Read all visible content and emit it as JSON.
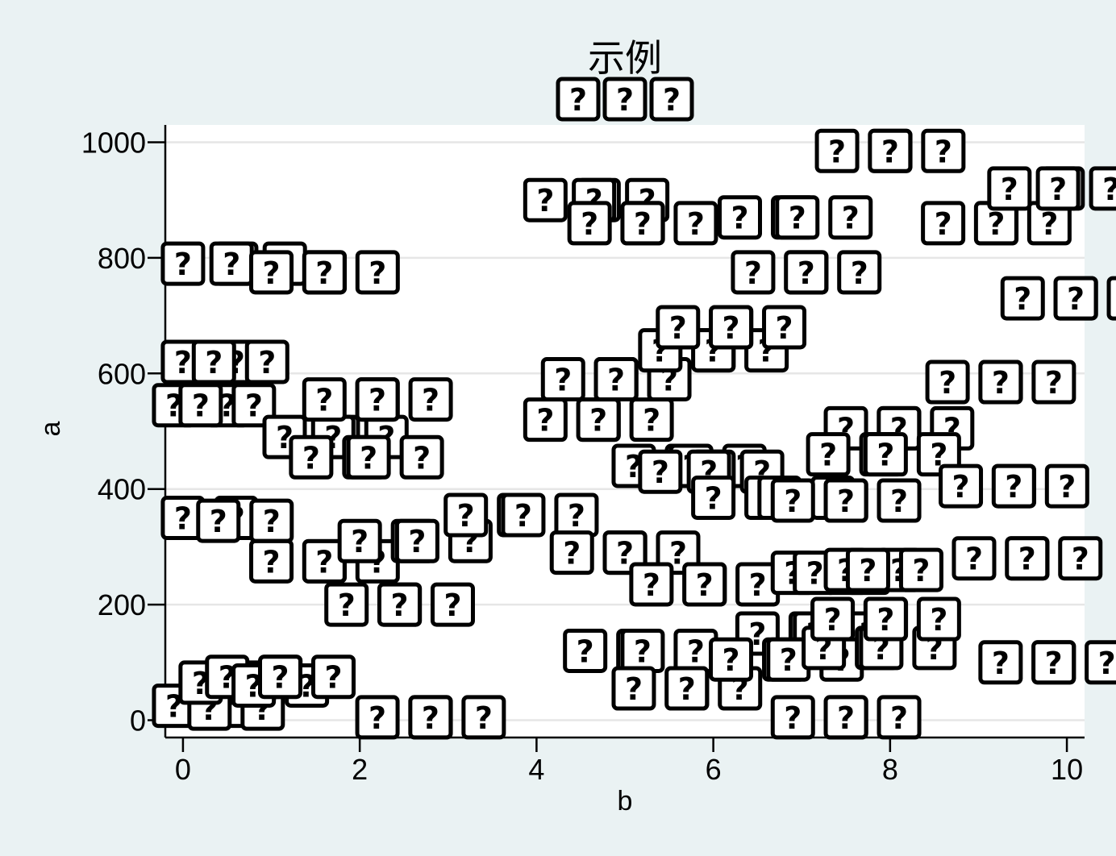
{
  "chart_data": {
    "type": "scatter",
    "title": "示例",
    "subtitle": "???",
    "xlabel": "b",
    "ylabel": "a",
    "xlim": [
      -0.2,
      10.2
    ],
    "ylim": [
      -30,
      1030
    ],
    "xticks": [
      0,
      2,
      4,
      6,
      8,
      10
    ],
    "yticks": [
      0,
      200,
      400,
      600,
      800,
      1000
    ],
    "grid": "horizontal",
    "marker": "?",
    "marker_labels": [
      "??"
    ],
    "series": [
      {
        "name": "",
        "points": [
          {
            "x": -0.1,
            "y": 25
          },
          {
            "x": 0.3,
            "y": 20
          },
          {
            "x": 0.2,
            "y": 65
          },
          {
            "x": 0.5,
            "y": 75
          },
          {
            "x": 0.8,
            "y": 60
          },
          {
            "x": 1.1,
            "y": 75
          },
          {
            "x": 0.0,
            "y": 350
          },
          {
            "x": 0.4,
            "y": 345
          },
          {
            "x": 1.0,
            "y": 275
          },
          {
            "x": 1.6,
            "y": 275
          },
          {
            "x": 1.85,
            "y": 200
          },
          {
            "x": 2.45,
            "y": 200
          },
          {
            "x": 2.0,
            "y": 310
          },
          {
            "x": 2.65,
            "y": 310
          },
          {
            "x": 2.2,
            "y": 5
          },
          {
            "x": 2.8,
            "y": 5
          },
          {
            "x": 3.2,
            "y": 355
          },
          {
            "x": 3.85,
            "y": 355
          },
          {
            "x": -0.1,
            "y": 545
          },
          {
            "x": 0.2,
            "y": 545
          },
          {
            "x": 0.0,
            "y": 620
          },
          {
            "x": 0.35,
            "y": 620
          },
          {
            "x": 0.0,
            "y": 790
          },
          {
            "x": 0.55,
            "y": 790
          },
          {
            "x": 1.0,
            "y": 775
          },
          {
            "x": 1.6,
            "y": 775
          },
          {
            "x": 1.15,
            "y": 490
          },
          {
            "x": 1.7,
            "y": 490
          },
          {
            "x": 1.45,
            "y": 455
          },
          {
            "x": 2.1,
            "y": 455
          },
          {
            "x": 1.6,
            "y": 555
          },
          {
            "x": 2.2,
            "y": 555
          },
          {
            "x": 4.1,
            "y": 900
          },
          {
            "x": 4.65,
            "y": 900
          },
          {
            "x": 4.6,
            "y": 860
          },
          {
            "x": 5.2,
            "y": 860
          },
          {
            "x": 4.3,
            "y": 590
          },
          {
            "x": 4.9,
            "y": 590
          },
          {
            "x": 4.1,
            "y": 520
          },
          {
            "x": 4.7,
            "y": 520
          },
          {
            "x": 4.4,
            "y": 290
          },
          {
            "x": 5.0,
            "y": 290
          },
          {
            "x": 5.3,
            "y": 235
          },
          {
            "x": 5.9,
            "y": 235
          },
          {
            "x": 4.55,
            "y": 120
          },
          {
            "x": 5.2,
            "y": 120
          },
          {
            "x": 5.1,
            "y": 55
          },
          {
            "x": 5.7,
            "y": 55
          },
          {
            "x": 5.1,
            "y": 440
          },
          {
            "x": 5.75,
            "y": 440
          },
          {
            "x": 5.4,
            "y": 430
          },
          {
            "x": 5.95,
            "y": 430
          },
          {
            "x": 5.4,
            "y": 640
          },
          {
            "x": 6.0,
            "y": 640
          },
          {
            "x": 5.6,
            "y": 680
          },
          {
            "x": 6.2,
            "y": 680
          },
          {
            "x": 6.0,
            "y": 385
          },
          {
            "x": 6.75,
            "y": 385
          },
          {
            "x": 6.9,
            "y": 380
          },
          {
            "x": 7.5,
            "y": 380
          },
          {
            "x": 6.3,
            "y": 870
          },
          {
            "x": 6.95,
            "y": 870
          },
          {
            "x": 6.45,
            "y": 775
          },
          {
            "x": 7.05,
            "y": 775
          },
          {
            "x": 6.5,
            "y": 150
          },
          {
            "x": 7.15,
            "y": 150
          },
          {
            "x": 6.2,
            "y": 105
          },
          {
            "x": 6.85,
            "y": 105
          },
          {
            "x": 7.25,
            "y": 125
          },
          {
            "x": 7.9,
            "y": 125
          },
          {
            "x": 7.35,
            "y": 175
          },
          {
            "x": 7.95,
            "y": 175
          },
          {
            "x": 6.9,
            "y": 255
          },
          {
            "x": 7.15,
            "y": 255
          },
          {
            "x": 7.5,
            "y": 260
          },
          {
            "x": 7.75,
            "y": 260
          },
          {
            "x": 6.9,
            "y": 5
          },
          {
            "x": 7.5,
            "y": 5
          },
          {
            "x": 7.5,
            "y": 505
          },
          {
            "x": 8.1,
            "y": 505
          },
          {
            "x": 7.3,
            "y": 460
          },
          {
            "x": 7.95,
            "y": 460
          },
          {
            "x": 7.4,
            "y": 985
          },
          {
            "x": 8.0,
            "y": 985
          },
          {
            "x": 8.65,
            "y": 585
          },
          {
            "x": 9.25,
            "y": 585
          },
          {
            "x": 8.8,
            "y": 405
          },
          {
            "x": 9.4,
            "y": 405
          },
          {
            "x": 8.95,
            "y": 280
          },
          {
            "x": 9.55,
            "y": 280
          },
          {
            "x": 8.6,
            "y": 860
          },
          {
            "x": 9.2,
            "y": 860
          },
          {
            "x": 9.35,
            "y": 920
          },
          {
            "x": 9.9,
            "y": 920
          },
          {
            "x": 9.5,
            "y": 730
          },
          {
            "x": 10.1,
            "y": 730
          },
          {
            "x": 9.25,
            "y": 100
          },
          {
            "x": 9.85,
            "y": 100
          }
        ]
      }
    ]
  }
}
